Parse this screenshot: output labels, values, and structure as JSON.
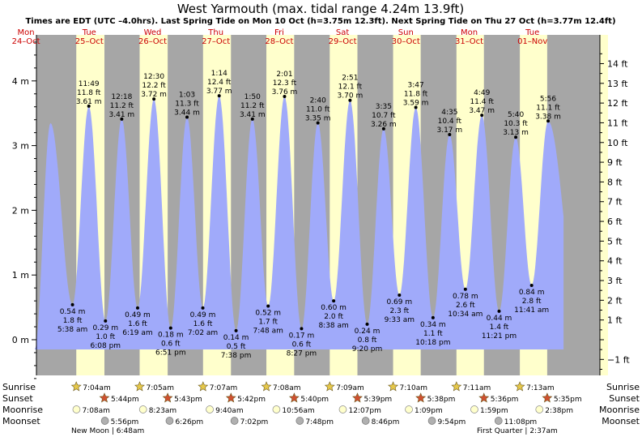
{
  "title": "West Yarmouth (max. tidal range 4.24m 13.9ft)",
  "subtitle": "Times are EDT (UTC –4.0hrs). Last Spring Tide on Mon 10 Oct (h=3.75m 12.3ft). Next Spring Tide on Thu 27 Oct (h=3.77m 12.4ft)",
  "colors": {
    "night": "#a6a6a6",
    "day": "#ffffcc",
    "water": "#a0aafa",
    "day_header": "#cc0000",
    "text": "#000000",
    "star": "#e6c84a",
    "star_sunset": "#d05030",
    "moon": "#ffffcc",
    "moon_set": "#b0b0b0"
  },
  "chart_data": {
    "type": "area",
    "title": "West Yarmouth (max. tidal range 4.24m 13.9ft)",
    "ylabel_left_unit": "m",
    "ylabel_right_unit": "ft",
    "ylim_m": [
      -0.73,
      4.76
    ],
    "left_ticks": [
      "0 m",
      "1 m",
      "2 m",
      "3 m",
      "4 m"
    ],
    "left_tick_values": [
      0,
      1,
      2,
      3,
      4
    ],
    "right_ticks": [
      "−1 ft",
      "1 ft",
      "2 ft",
      "3 ft",
      "4 ft",
      "5 ft",
      "6 ft",
      "7 ft",
      "8 ft",
      "9 ft",
      "10 ft",
      "11 ft",
      "12 ft",
      "13 ft",
      "14 ft"
    ],
    "right_tick_values_ft": [
      -1,
      1,
      2,
      3,
      4,
      5,
      6,
      7,
      8,
      9,
      10,
      11,
      12,
      13,
      14
    ],
    "days": [
      {
        "weekday": "Mon",
        "date": "24–Oct",
        "day": 0
      },
      {
        "weekday": "Tue",
        "date": "25–Oct",
        "day": 1
      },
      {
        "weekday": "Wed",
        "date": "26–Oct",
        "day": 2
      },
      {
        "weekday": "Thu",
        "date": "27–Oct",
        "day": 3
      },
      {
        "weekday": "Fri",
        "date": "28–Oct",
        "day": 4
      },
      {
        "weekday": "Sat",
        "date": "29–Oct",
        "day": 5
      },
      {
        "weekday": "Sun",
        "date": "30–Oct",
        "day": 6
      },
      {
        "weekday": "Mon",
        "date": "31–Oct",
        "day": 7
      },
      {
        "weekday": "Tue",
        "date": "01–Nov",
        "day": 8
      }
    ],
    "tides": [
      {
        "type": "low",
        "day": 1,
        "time": "5:38 am",
        "m": "0.54 m",
        "ft": "1.8 ft",
        "h": 0.54
      },
      {
        "type": "high",
        "day": 1,
        "time": "11:49 am",
        "m": "3.61 m",
        "ft": "11.8 ft",
        "h": 3.61
      },
      {
        "type": "low",
        "day": 1,
        "time": "6:08 pm",
        "m": "0.29 m",
        "ft": "1.0 ft",
        "h": 0.29
      },
      {
        "type": "high",
        "day": 2,
        "time": "12:18 am",
        "m": "3.41 m",
        "ft": "11.2 ft",
        "h": 3.41
      },
      {
        "type": "low",
        "day": 2,
        "time": "6:19 am",
        "m": "0.49 m",
        "ft": "1.6 ft",
        "h": 0.49
      },
      {
        "type": "high",
        "day": 2,
        "time": "12:30 pm",
        "m": "3.72 m",
        "ft": "12.2 ft",
        "h": 3.72
      },
      {
        "type": "low",
        "day": 2,
        "time": "6:51 pm",
        "m": "0.18 m",
        "ft": "0.6 ft",
        "h": 0.18
      },
      {
        "type": "high",
        "day": 3,
        "time": "1:03 am",
        "m": "3.44 m",
        "ft": "11.3 ft",
        "h": 3.44
      },
      {
        "type": "low",
        "day": 3,
        "time": "7:02 am",
        "m": "0.49 m",
        "ft": "1.6 ft",
        "h": 0.49
      },
      {
        "type": "high",
        "day": 3,
        "time": "1:14 pm",
        "m": "3.77 m",
        "ft": "12.4 ft",
        "h": 3.77
      },
      {
        "type": "low",
        "day": 3,
        "time": "7:38 pm",
        "m": "0.14 m",
        "ft": "0.5 ft",
        "h": 0.14
      },
      {
        "type": "high",
        "day": 4,
        "time": "1:50 am",
        "m": "3.41 m",
        "ft": "11.2 ft",
        "h": 3.41
      },
      {
        "type": "low",
        "day": 4,
        "time": "7:48 am",
        "m": "0.52 m",
        "ft": "1.7 ft",
        "h": 0.52
      },
      {
        "type": "high",
        "day": 4,
        "time": "2:01 pm",
        "m": "3.76 m",
        "ft": "12.3 ft",
        "h": 3.76
      },
      {
        "type": "low",
        "day": 4,
        "time": "8:27 pm",
        "m": "0.17 m",
        "ft": "0.6 ft",
        "h": 0.17
      },
      {
        "type": "high",
        "day": 5,
        "time": "2:40 am",
        "m": "3.35 m",
        "ft": "11.0 ft",
        "h": 3.35
      },
      {
        "type": "low",
        "day": 5,
        "time": "8:38 am",
        "m": "0.60 m",
        "ft": "2.0 ft",
        "h": 0.6
      },
      {
        "type": "high",
        "day": 5,
        "time": "2:51 pm",
        "m": "3.70 m",
        "ft": "12.1 ft",
        "h": 3.7
      },
      {
        "type": "low",
        "day": 5,
        "time": "9:20 pm",
        "m": "0.24 m",
        "ft": "0.8 ft",
        "h": 0.24
      },
      {
        "type": "high",
        "day": 6,
        "time": "3:35 am",
        "m": "3.26 m",
        "ft": "10.7 ft",
        "h": 3.26
      },
      {
        "type": "low",
        "day": 6,
        "time": "9:33 am",
        "m": "0.69 m",
        "ft": "2.3 ft",
        "h": 0.69
      },
      {
        "type": "high",
        "day": 6,
        "time": "3:47 pm",
        "m": "3.59 m",
        "ft": "11.8 ft",
        "h": 3.59
      },
      {
        "type": "low",
        "day": 6,
        "time": "10:18 pm",
        "m": "0.34 m",
        "ft": "1.1 ft",
        "h": 0.34
      },
      {
        "type": "high",
        "day": 7,
        "time": "4:35 am",
        "m": "3.17 m",
        "ft": "10.4 ft",
        "h": 3.17
      },
      {
        "type": "low",
        "day": 7,
        "time": "10:34 am",
        "m": "0.78 m",
        "ft": "2.6 ft",
        "h": 0.78
      },
      {
        "type": "high",
        "day": 7,
        "time": "4:49 pm",
        "m": "3.47 m",
        "ft": "11.4 ft",
        "h": 3.47
      },
      {
        "type": "low",
        "day": 7,
        "time": "11:21 pm",
        "m": "0.44 m",
        "ft": "1.4 ft",
        "h": 0.44
      },
      {
        "type": "high",
        "day": 8,
        "time": "5:40 am",
        "m": "3.13 m",
        "ft": "10.3 ft",
        "h": 3.13
      },
      {
        "type": "low",
        "day": 8,
        "time": "11:41 am",
        "m": "0.84 m",
        "ft": "2.8 ft",
        "h": 0.84
      },
      {
        "type": "high",
        "day": 8,
        "time": "5:56 pm",
        "m": "3.38 m",
        "ft": "11.1 ft",
        "h": 3.38
      }
    ],
    "sunrise": [
      {
        "day": 1,
        "time": "7:04am"
      },
      {
        "day": 2,
        "time": "7:05am"
      },
      {
        "day": 3,
        "time": "7:07am"
      },
      {
        "day": 4,
        "time": "7:08am"
      },
      {
        "day": 5,
        "time": "7:09am"
      },
      {
        "day": 6,
        "time": "7:10am"
      },
      {
        "day": 7,
        "time": "7:11am"
      },
      {
        "day": 8,
        "time": "7:13am"
      }
    ],
    "sunset": [
      {
        "day": 1,
        "time": "5:44pm"
      },
      {
        "day": 2,
        "time": "5:43pm"
      },
      {
        "day": 3,
        "time": "5:42pm"
      },
      {
        "day": 4,
        "time": "5:40pm"
      },
      {
        "day": 5,
        "time": "5:39pm"
      },
      {
        "day": 6,
        "time": "5:38pm"
      },
      {
        "day": 7,
        "time": "5:36pm"
      },
      {
        "day": 8,
        "time": "5:35pm"
      }
    ],
    "moonrise": [
      {
        "day": 1,
        "time": "7:08am"
      },
      {
        "day": 2,
        "time": "8:23am"
      },
      {
        "day": 3,
        "time": "9:40am"
      },
      {
        "day": 4,
        "time": "10:56am"
      },
      {
        "day": 5,
        "time": "12:07pm"
      },
      {
        "day": 6,
        "time": "1:09pm"
      },
      {
        "day": 7,
        "time": "1:59pm"
      },
      {
        "day": 8,
        "time": "2:38pm"
      }
    ],
    "moonset": [
      {
        "day": 1,
        "time": "5:56pm"
      },
      {
        "day": 2,
        "time": "6:26pm"
      },
      {
        "day": 3,
        "time": "7:02pm"
      },
      {
        "day": 4,
        "time": "7:48pm"
      },
      {
        "day": 5,
        "time": "8:46pm"
      },
      {
        "day": 6,
        "time": "9:54pm"
      },
      {
        "day": 7,
        "time": "11:08pm"
      }
    ],
    "row_labels": [
      "Sunrise",
      "Sunset",
      "Moonrise",
      "Moonset"
    ],
    "moon_phases": [
      "New Moon | 6:48am",
      "First Quarter | 2:37am"
    ]
  }
}
